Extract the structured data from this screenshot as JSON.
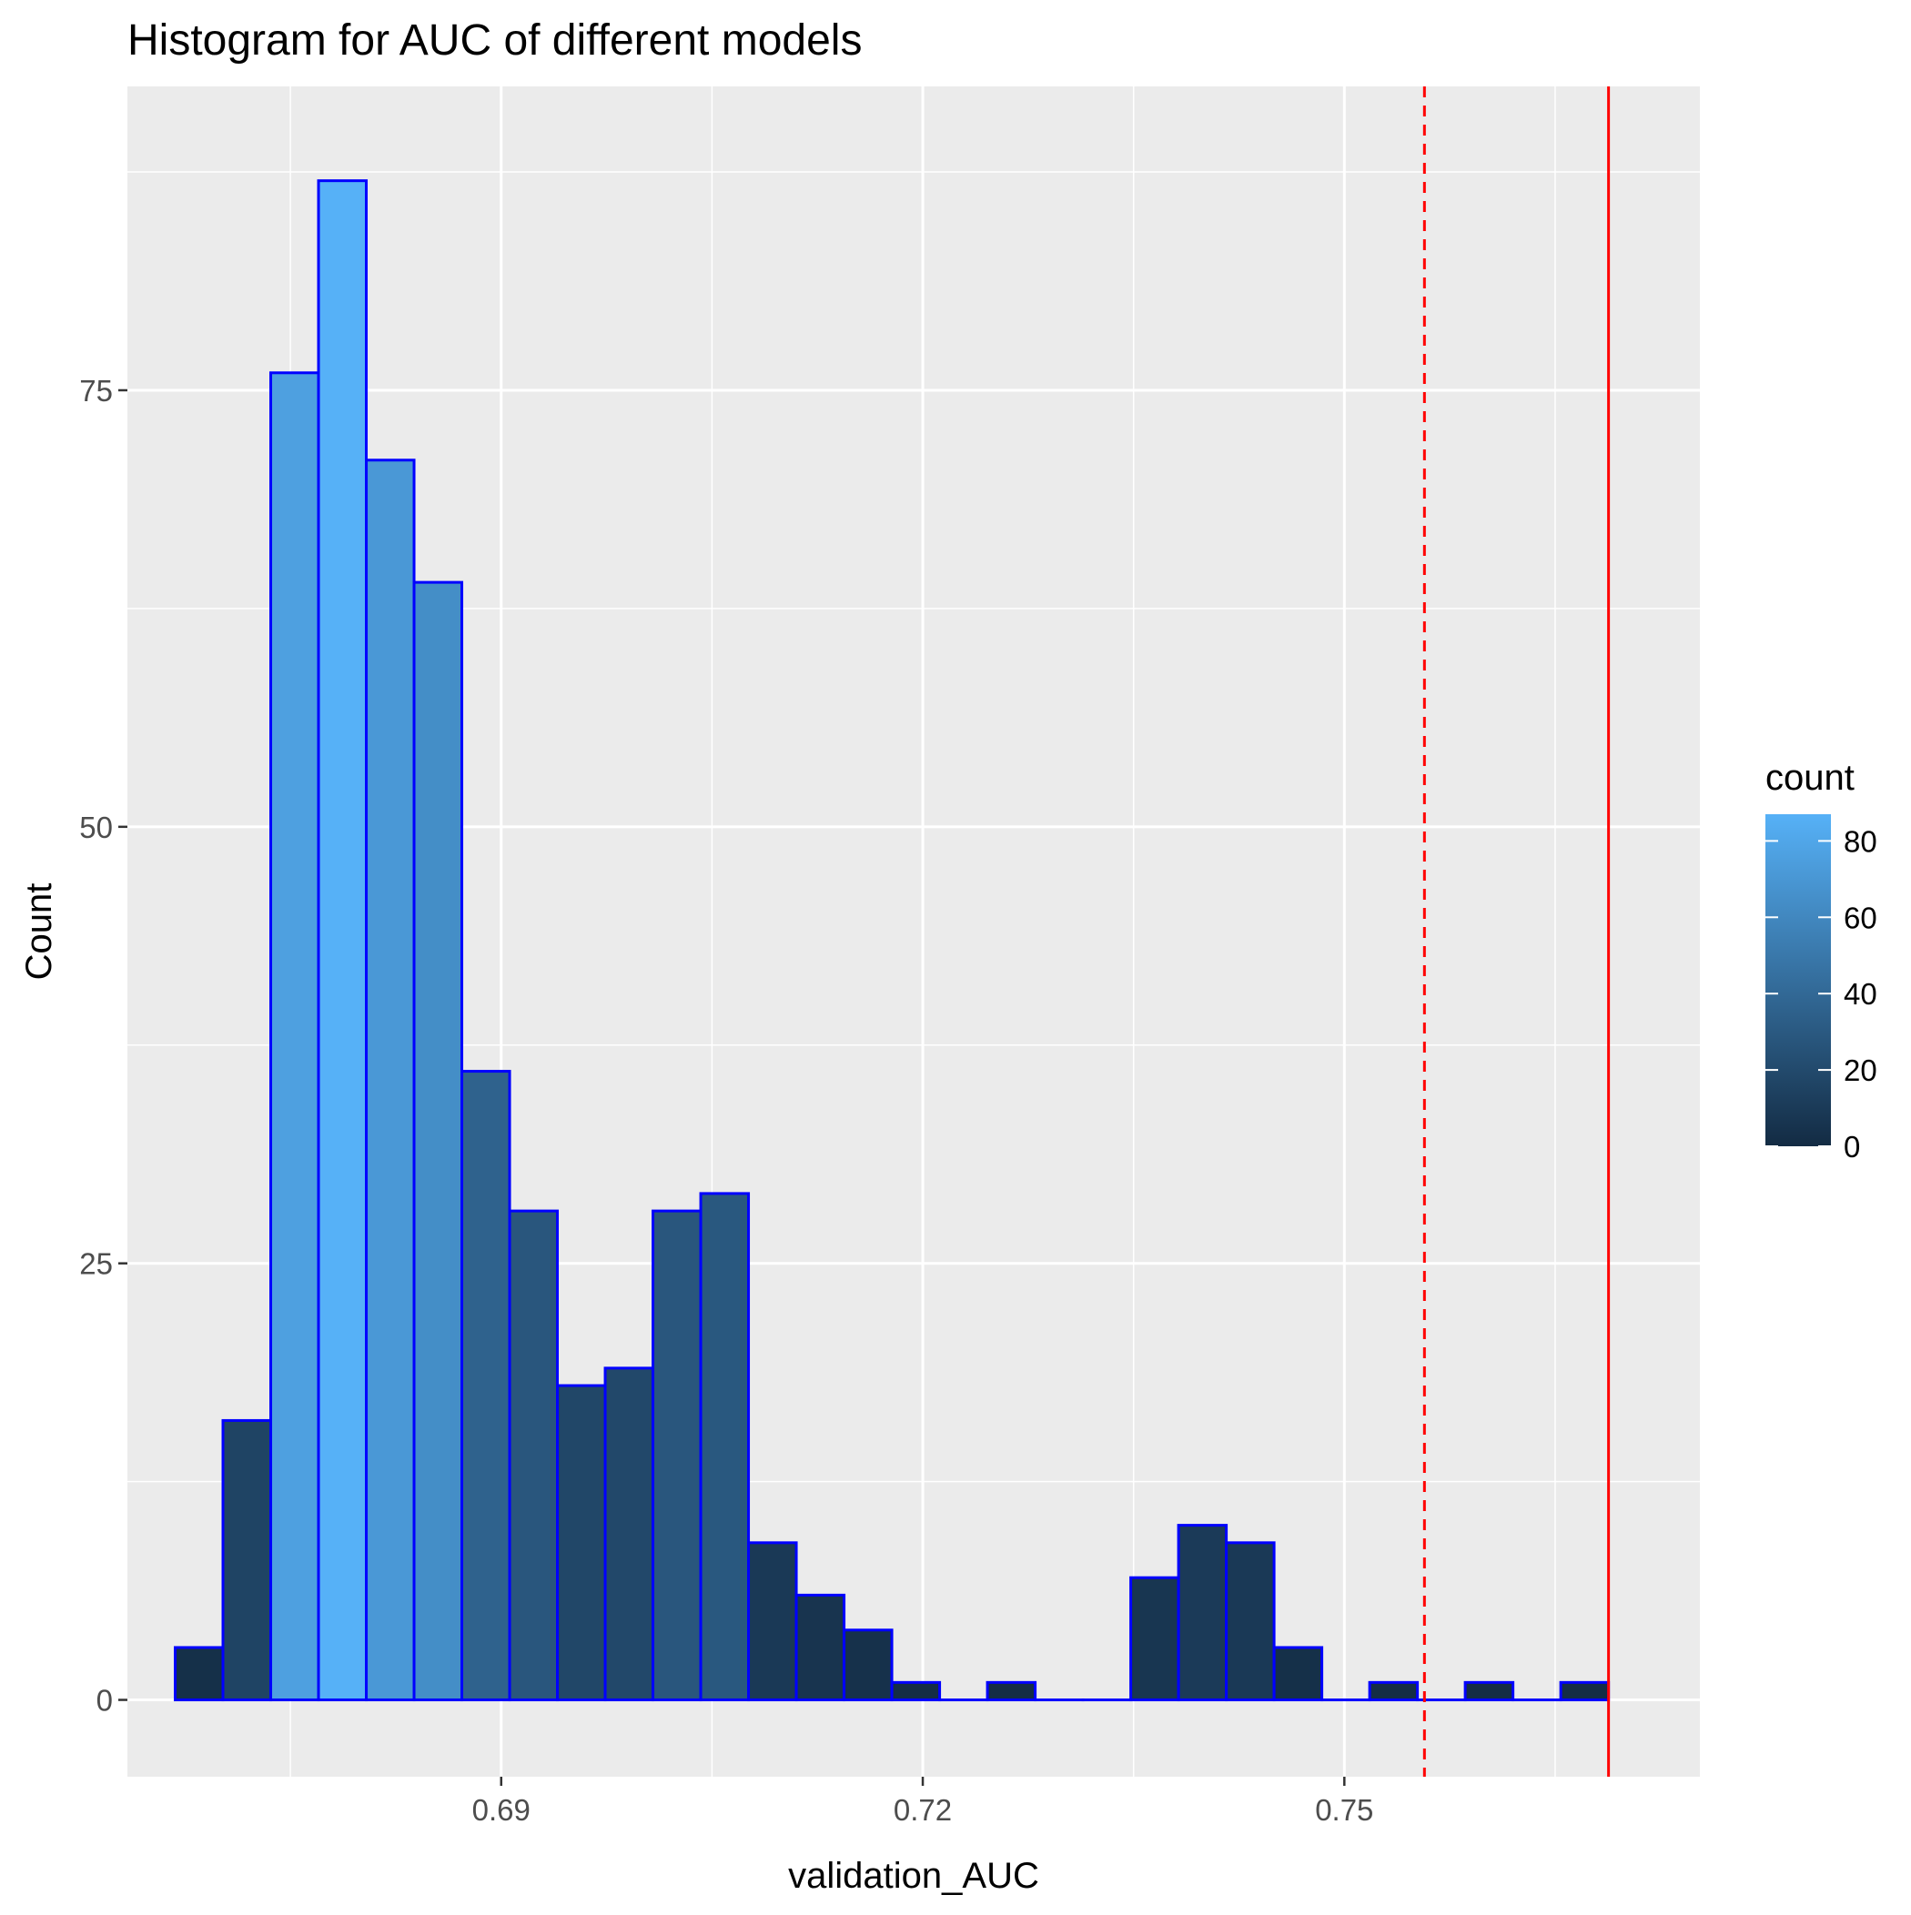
{
  "chart_data": {
    "type": "histogram",
    "title": "Histogram for AUC of different models",
    "xlabel": "validation_AUC",
    "ylabel": "Count",
    "xlim": [
      0.6634,
      0.7753
    ],
    "ylim": [
      -4.4,
      92.4
    ],
    "x_ticks": [
      0.69,
      0.72,
      0.75
    ],
    "x_tick_labels": [
      "0.69",
      "0.72",
      "0.75"
    ],
    "x_minor_ticks": [
      0.675,
      0.705,
      0.735,
      0.765
    ],
    "y_ticks": [
      0,
      25,
      50,
      75
    ],
    "y_tick_labels": [
      "0",
      "25",
      "50",
      "75"
    ],
    "y_minor_ticks": [
      12.5,
      37.5,
      62.5,
      87.5
    ],
    "bin_width": 0.0034,
    "bins": [
      {
        "x": 0.6685,
        "count": 3
      },
      {
        "x": 0.6719,
        "count": 16
      },
      {
        "x": 0.6753,
        "count": 76
      },
      {
        "x": 0.6787,
        "count": 87
      },
      {
        "x": 0.6821,
        "count": 71
      },
      {
        "x": 0.6855,
        "count": 64
      },
      {
        "x": 0.6889,
        "count": 36
      },
      {
        "x": 0.6923,
        "count": 28
      },
      {
        "x": 0.6957,
        "count": 18
      },
      {
        "x": 0.6991,
        "count": 19
      },
      {
        "x": 0.7025,
        "count": 28
      },
      {
        "x": 0.7059,
        "count": 29
      },
      {
        "x": 0.7093,
        "count": 9
      },
      {
        "x": 0.7127,
        "count": 6
      },
      {
        "x": 0.7161,
        "count": 4
      },
      {
        "x": 0.7195,
        "count": 1
      },
      {
        "x": 0.7229,
        "count": 0
      },
      {
        "x": 0.7263,
        "count": 1
      },
      {
        "x": 0.7297,
        "count": 0
      },
      {
        "x": 0.7331,
        "count": 0
      },
      {
        "x": 0.7365,
        "count": 7
      },
      {
        "x": 0.7399,
        "count": 10
      },
      {
        "x": 0.7433,
        "count": 9
      },
      {
        "x": 0.7467,
        "count": 3
      },
      {
        "x": 0.7501,
        "count": 0
      },
      {
        "x": 0.7535,
        "count": 1
      },
      {
        "x": 0.7569,
        "count": 0
      },
      {
        "x": 0.7603,
        "count": 1
      },
      {
        "x": 0.7637,
        "count": 0
      },
      {
        "x": 0.7671,
        "count": 1
      }
    ],
    "vlines": [
      {
        "x": 0.7557,
        "style": "dashed",
        "color": "#ff0000"
      },
      {
        "x": 0.7688,
        "style": "solid",
        "color": "#ff0000"
      }
    ],
    "fill_gradient": {
      "low": "#132B43",
      "high": "#56B1F7",
      "min": 0,
      "max": 87
    },
    "bar_outline_color": "#0000ff",
    "panel_background": "#ebebeb",
    "grid": true,
    "legend": {
      "title": "count",
      "position": "right",
      "ticks": [
        0,
        20,
        40,
        60,
        80
      ],
      "tick_labels": [
        "0",
        "20",
        "40",
        "60",
        "80"
      ]
    }
  }
}
